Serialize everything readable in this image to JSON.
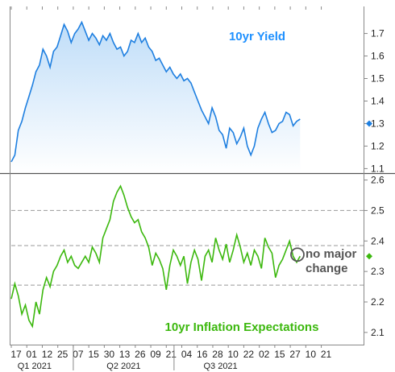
{
  "chart_data": [
    {
      "type": "area",
      "title": "10yr Yield",
      "title_color": "#1E90FF",
      "line_color": "#1E7FE0",
      "fill_color": "#BFDDF8",
      "ylim": [
        1.08,
        1.82
      ],
      "yticks": [
        1.1,
        1.2,
        1.3,
        1.4,
        1.5,
        1.6,
        1.7
      ],
      "gridlines": false,
      "last_value_marker": 1.3,
      "series": [
        {
          "x": [
            0,
            1,
            2,
            3,
            4,
            5,
            6,
            7,
            8,
            9,
            10,
            11,
            12,
            13,
            14,
            15,
            16,
            17,
            18,
            19,
            20,
            21,
            22,
            23,
            24,
            25,
            26,
            27,
            28,
            29,
            30,
            31,
            32,
            33,
            34,
            35,
            36,
            37,
            38,
            39,
            40,
            41,
            42,
            43,
            44,
            45,
            46,
            47,
            48,
            49,
            50,
            51,
            52,
            53,
            54,
            55,
            56,
            57,
            58,
            59,
            60,
            61,
            62,
            63,
            64,
            65,
            66,
            67,
            68,
            69,
            70,
            71,
            72,
            73,
            74,
            75,
            76,
            77,
            78,
            79,
            80,
            81,
            82
          ],
          "values": [
            1.13,
            1.16,
            1.27,
            1.31,
            1.37,
            1.42,
            1.47,
            1.53,
            1.56,
            1.63,
            1.6,
            1.55,
            1.62,
            1.64,
            1.69,
            1.74,
            1.71,
            1.66,
            1.7,
            1.72,
            1.75,
            1.71,
            1.67,
            1.7,
            1.68,
            1.65,
            1.69,
            1.67,
            1.7,
            1.66,
            1.63,
            1.64,
            1.6,
            1.62,
            1.67,
            1.66,
            1.7,
            1.66,
            1.68,
            1.64,
            1.62,
            1.58,
            1.59,
            1.56,
            1.53,
            1.55,
            1.52,
            1.5,
            1.52,
            1.49,
            1.5,
            1.48,
            1.44,
            1.4,
            1.36,
            1.33,
            1.3,
            1.37,
            1.33,
            1.27,
            1.25,
            1.19,
            1.28,
            1.26,
            1.21,
            1.24,
            1.28,
            1.2,
            1.16,
            1.2,
            1.28,
            1.32,
            1.35,
            1.3,
            1.26,
            1.27,
            1.3,
            1.31,
            1.35,
            1.34,
            1.29,
            1.31,
            1.32
          ]
        }
      ]
    },
    {
      "type": "line",
      "title": "10yr Inflation Expectations",
      "title_color": "#3CB80E",
      "line_color": "#3CB80E",
      "ylim": [
        2.06,
        2.62
      ],
      "yticks": [
        2.1,
        2.2,
        2.3,
        2.4,
        2.5,
        2.6
      ],
      "dashed_reference_lines": [
        2.5,
        2.385,
        2.255
      ],
      "last_value_marker": 2.35,
      "annotation": {
        "text_lines": [
          "no major",
          "change"
        ],
        "x": 81,
        "y": 2.35
      },
      "series": [
        {
          "x": [
            0,
            1,
            2,
            3,
            4,
            5,
            6,
            7,
            8,
            9,
            10,
            11,
            12,
            13,
            14,
            15,
            16,
            17,
            18,
            19,
            20,
            21,
            22,
            23,
            24,
            25,
            26,
            27,
            28,
            29,
            30,
            31,
            32,
            33,
            34,
            35,
            36,
            37,
            38,
            39,
            40,
            41,
            42,
            43,
            44,
            45,
            46,
            47,
            48,
            49,
            50,
            51,
            52,
            53,
            54,
            55,
            56,
            57,
            58,
            59,
            60,
            61,
            62,
            63,
            64,
            65,
            66,
            67,
            68,
            69,
            70,
            71,
            72,
            73,
            74,
            75,
            76,
            77,
            78,
            79,
            80,
            81,
            82
          ],
          "values": [
            2.21,
            2.26,
            2.22,
            2.16,
            2.19,
            2.14,
            2.12,
            2.2,
            2.16,
            2.24,
            2.28,
            2.25,
            2.3,
            2.32,
            2.35,
            2.37,
            2.33,
            2.35,
            2.32,
            2.31,
            2.33,
            2.35,
            2.33,
            2.38,
            2.36,
            2.33,
            2.41,
            2.44,
            2.47,
            2.53,
            2.56,
            2.58,
            2.55,
            2.51,
            2.48,
            2.46,
            2.47,
            2.43,
            2.41,
            2.38,
            2.32,
            2.36,
            2.34,
            2.31,
            2.24,
            2.32,
            2.37,
            2.35,
            2.32,
            2.35,
            2.26,
            2.33,
            2.37,
            2.34,
            2.27,
            2.35,
            2.37,
            2.33,
            2.41,
            2.37,
            2.34,
            2.39,
            2.33,
            2.37,
            2.42,
            2.38,
            2.33,
            2.36,
            2.32,
            2.37,
            2.35,
            2.31,
            2.41,
            2.38,
            2.36,
            2.28,
            2.32,
            2.34,
            2.37,
            2.4,
            2.35,
            2.33,
            2.35
          ]
        }
      ]
    }
  ],
  "x_axis": {
    "range": [
      0,
      100
    ],
    "ticks": [
      {
        "x": 0,
        "label": "17"
      },
      {
        "x": 4.4,
        "label": "01"
      },
      {
        "x": 8.8,
        "label": "12"
      },
      {
        "x": 13.2,
        "label": "25"
      },
      {
        "x": 17.6,
        "label": "07"
      },
      {
        "x": 22.0,
        "label": "15"
      },
      {
        "x": 26.4,
        "label": "30"
      },
      {
        "x": 30.8,
        "label": "13"
      },
      {
        "x": 35.2,
        "label": "26"
      },
      {
        "x": 39.6,
        "label": "09"
      },
      {
        "x": 44.0,
        "label": "21"
      },
      {
        "x": 48.4,
        "label": "04"
      },
      {
        "x": 52.8,
        "label": "16"
      },
      {
        "x": 57.2,
        "label": "28"
      },
      {
        "x": 61.6,
        "label": "10"
      },
      {
        "x": 66.0,
        "label": "22"
      },
      {
        "x": 70.4,
        "label": "02"
      },
      {
        "x": 74.8,
        "label": "15"
      },
      {
        "x": 79.2,
        "label": "27"
      },
      {
        "x": 83.6,
        "label": "10"
      },
      {
        "x": 88.0,
        "label": "21"
      }
    ],
    "quarter_boundaries": [
      17.6,
      46.2
    ],
    "quarters": [
      {
        "x": 6.6,
        "label": "Q1 2021"
      },
      {
        "x": 31.9,
        "label": "Q2 2021"
      },
      {
        "x": 59.4,
        "label": "Q3 2021"
      }
    ]
  },
  "colors": {
    "axis": "#888888",
    "divider": "#555555",
    "dashed": "#999999",
    "marker_circle": "#555555"
  }
}
